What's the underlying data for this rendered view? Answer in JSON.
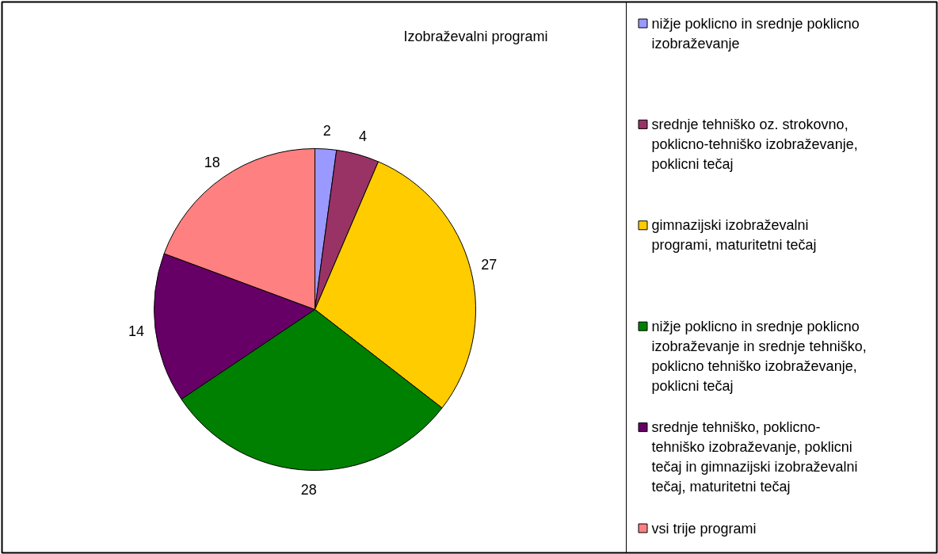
{
  "chart_data": {
    "type": "pie",
    "title": "Izobraževalni programi",
    "categories": [
      "nižje poklicno in srednje poklicno izobraževanje",
      "srednje tehniško oz. strokovno, poklicno-tehniško izobraževanje, poklicni tečaj",
      "gimnazijski izobraževalni programi, maturitetni tečaj",
      "nižje poklicno in srednje poklicno izobraževanje in srednje tehniško, poklicno tehniško izobraževanje, poklicni tečaj",
      "srednje tehniško, poklicno-tehniško izobraževanje, poklicni tečaj in gimnazijski izobraževalni tečaj, maturitetni tečaj",
      "vsi trije programi"
    ],
    "values": [
      2,
      4,
      27,
      28,
      14,
      18
    ],
    "colors": [
      "#9999ff",
      "#993366",
      "#ffcc00",
      "#008000",
      "#660066",
      "#ff8080"
    ],
    "data_labels": true,
    "legend": "right"
  }
}
